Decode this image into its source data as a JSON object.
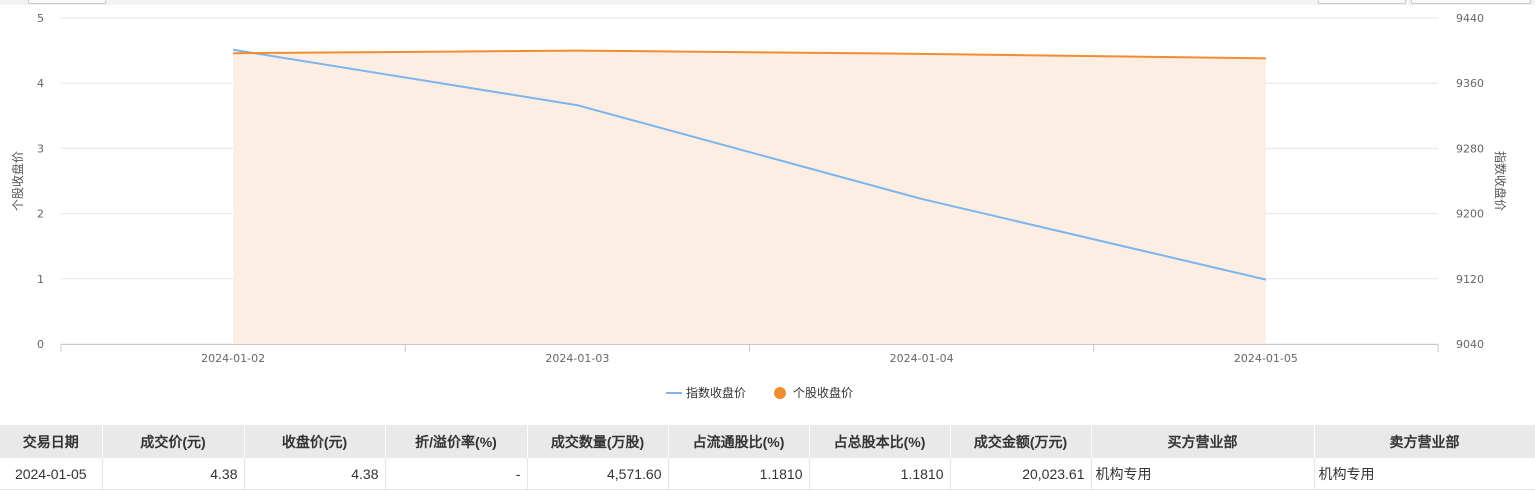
{
  "chart_data": {
    "type": "line",
    "x": [
      "2024-01-02",
      "2024-01-03",
      "2024-01-04",
      "2024-01-05"
    ],
    "series": [
      {
        "name": "指数收盘价",
        "axis": "right",
        "style": "line",
        "color": "#7cb5ec",
        "values": [
          9401,
          9333,
          9218,
          9119
        ]
      },
      {
        "name": "个股收盘价",
        "axis": "left",
        "style": "area",
        "color": "#f28c30",
        "fill": "#fdeee4",
        "values": [
          4.46,
          4.5,
          4.45,
          4.38
        ]
      }
    ],
    "y_left": {
      "label": "个股收盘价",
      "range": [
        0,
        5
      ],
      "ticks": [
        "0",
        "1",
        "2",
        "3",
        "4",
        "5"
      ]
    },
    "y_right": {
      "label": "指数收盘价",
      "range": [
        9040,
        9440
      ],
      "ticks": [
        "9040",
        "9120",
        "9200",
        "9280",
        "9360",
        "9440"
      ]
    },
    "grid": true,
    "legend": "bottom-center"
  },
  "table": {
    "columns": [
      "交易日期",
      "成交价(元)",
      "收盘价(元)",
      "折/溢价率(%)",
      "成交数量(万股)",
      "占流通股比(%)",
      "占总股本比(%)",
      "成交金额(万元)",
      "买方营业部",
      "卖方营业部"
    ],
    "rows": [
      [
        "2024-01-05",
        "4.38",
        "4.38",
        "-",
        "4,571.60",
        "1.1810",
        "1.1810",
        "20,023.61",
        "机构专用",
        "机构专用"
      ]
    ]
  }
}
